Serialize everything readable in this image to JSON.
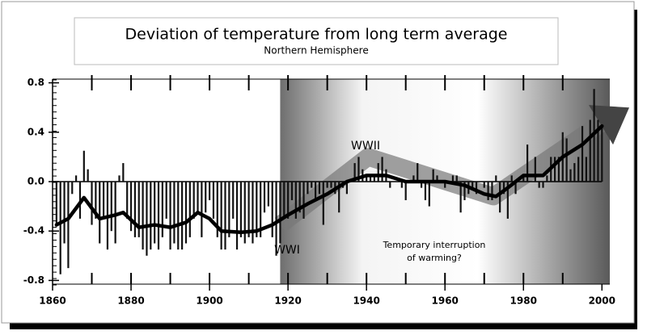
{
  "chart_data": {
    "type": "bar",
    "title": "Deviation of temperature from long term average",
    "subtitle": "Northern Hemisphere",
    "annotations": {
      "wwi": "WWI",
      "wwii": "WWII",
      "note": [
        "Temporary interruption",
        "of warming?"
      ]
    },
    "xlim": [
      1860,
      2002
    ],
    "xticks": [
      1860,
      1880,
      1900,
      1920,
      1940,
      1960,
      1980,
      2000
    ],
    "ylim": [
      -0.83,
      0.83
    ],
    "yticks": [
      0.8,
      0.4,
      {
        "value": 0,
        "label": "0.0"
      },
      -0.4,
      -0.8
    ],
    "series": [
      {
        "color": "#111111",
        "x": [
          1861,
          1862,
          1863,
          1864,
          1865,
          1866,
          1867,
          1868,
          1869,
          1870,
          1871,
          1872,
          1873,
          1874,
          1875,
          1876,
          1877,
          1878,
          1879,
          1880,
          1881,
          1882,
          1883,
          1884,
          1885,
          1886,
          1887,
          1888,
          1889,
          1890,
          1891,
          1892,
          1893,
          1894,
          1895,
          1896,
          1897,
          1898,
          1899,
          1900,
          1901,
          1902,
          1903,
          1904,
          1905,
          1906,
          1907,
          1908,
          1909,
          1910,
          1911,
          1912,
          1913,
          1914,
          1915,
          1916,
          1917,
          1918,
          1919,
          1920,
          1921,
          1922,
          1923,
          1924,
          1925,
          1926,
          1927,
          1928,
          1929,
          1930,
          1931,
          1932,
          1933,
          1934,
          1935,
          1936,
          1937,
          1938,
          1939,
          1940,
          1941,
          1942,
          1943,
          1944,
          1945,
          1946,
          1947,
          1948,
          1949,
          1950,
          1951,
          1952,
          1953,
          1954,
          1955,
          1956,
          1957,
          1958,
          1959,
          1960,
          1961,
          1962,
          1963,
          1964,
          1965,
          1966,
          1967,
          1968,
          1969,
          1970,
          1971,
          1972,
          1973,
          1974,
          1975,
          1976,
          1977,
          1978,
          1979,
          1980,
          1981,
          1982,
          1983,
          1984,
          1985,
          1986,
          1987,
          1988,
          1989,
          1990,
          1991,
          1992,
          1993,
          1994,
          1995,
          1996,
          1997,
          1998,
          1999,
          2000
        ],
        "values": [
          -0.35,
          -0.75,
          -0.5,
          -0.7,
          -0.1,
          0.05,
          -0.3,
          0.25,
          0.1,
          -0.35,
          -0.3,
          -0.5,
          -0.3,
          -0.55,
          -0.4,
          -0.5,
          0.05,
          0.15,
          -0.3,
          -0.4,
          -0.45,
          -0.45,
          -0.55,
          -0.6,
          -0.55,
          -0.5,
          -0.55,
          -0.45,
          -0.3,
          -0.55,
          -0.5,
          -0.55,
          -0.55,
          -0.5,
          -0.45,
          -0.3,
          -0.25,
          -0.45,
          -0.25,
          -0.15,
          -0.3,
          -0.45,
          -0.55,
          -0.55,
          -0.45,
          -0.3,
          -0.55,
          -0.45,
          -0.5,
          -0.45,
          -0.5,
          -0.45,
          -0.45,
          -0.25,
          -0.2,
          -0.45,
          -0.6,
          -0.5,
          -0.3,
          -0.3,
          -0.15,
          -0.3,
          -0.25,
          -0.3,
          -0.1,
          -0.05,
          -0.15,
          -0.1,
          -0.35,
          -0.05,
          -0.05,
          -0.1,
          -0.25,
          -0.05,
          -0.1,
          0.0,
          0.15,
          0.2,
          0.1,
          0.05,
          0.05,
          0.05,
          0.15,
          0.2,
          0.1,
          -0.05,
          0.0,
          0.0,
          -0.05,
          -0.15,
          0.0,
          0.05,
          0.15,
          -0.05,
          -0.15,
          -0.2,
          0.1,
          0.05,
          0.0,
          -0.05,
          0.0,
          0.05,
          0.05,
          -0.25,
          -0.15,
          -0.1,
          -0.05,
          -0.1,
          0.0,
          -0.05,
          -0.15,
          -0.15,
          0.05,
          -0.25,
          -0.1,
          -0.3,
          0.05,
          -0.1,
          0.0,
          0.05,
          0.3,
          0.0,
          0.2,
          -0.05,
          -0.05,
          0.05,
          0.2,
          0.2,
          0.2,
          0.4,
          0.35,
          0.1,
          0.15,
          0.2,
          0.45,
          0.2,
          0.5,
          0.75,
          0.5,
          0.45
        ]
      },
      {
        "type": "line",
        "color": "#000000",
        "x": [
          1861,
          1864,
          1868,
          1872,
          1876,
          1878,
          1882,
          1886,
          1890,
          1894,
          1897,
          1900,
          1903,
          1908,
          1912,
          1916,
          1920,
          1925,
          1930,
          1935,
          1940,
          1945,
          1950,
          1955,
          1960,
          1965,
          1970,
          1973,
          1976,
          1980,
          1985,
          1990,
          1995,
          2000
        ],
        "values": [
          -0.35,
          -0.3,
          -0.13,
          -0.3,
          -0.27,
          -0.25,
          -0.37,
          -0.35,
          -0.37,
          -0.33,
          -0.25,
          -0.3,
          -0.4,
          -0.41,
          -0.4,
          -0.35,
          -0.27,
          -0.18,
          -0.1,
          0.0,
          0.05,
          0.05,
          0.0,
          0.0,
          0.0,
          -0.03,
          -0.1,
          -0.12,
          -0.05,
          0.05,
          0.05,
          0.2,
          0.3,
          0.45
        ]
      }
    ]
  }
}
